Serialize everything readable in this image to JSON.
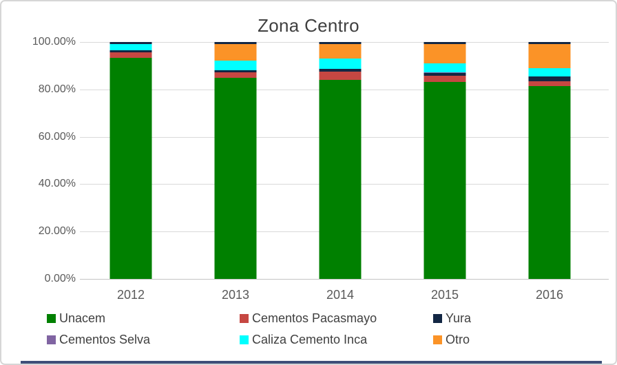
{
  "chart_data": {
    "type": "bar",
    "variant": "100-percent-stacked-column",
    "title": "Zona Centro",
    "categories": [
      "2012",
      "2013",
      "2014",
      "2015",
      "2016"
    ],
    "y_tick_labels": [
      "100.00%",
      "80.00%",
      "60.00%",
      "40.00%",
      "20.00%",
      "0.00%"
    ],
    "ylim": [
      0,
      100
    ],
    "grid": true,
    "legend_position": "bottom",
    "series": [
      {
        "name": "Unacem",
        "color": "#008000",
        "values": [
          93.3,
          85.0,
          84.0,
          83.1,
          81.3
        ]
      },
      {
        "name": "Cementos Pacasmayo",
        "color": "#C64742",
        "values": [
          2.3,
          2.1,
          3.5,
          2.7,
          2.1
        ]
      },
      {
        "name": "Yura",
        "color": "#132744",
        "values": [
          0.8,
          1.0,
          1.2,
          1.2,
          2.0
        ]
      },
      {
        "name": "Cementos Selva",
        "color": "#8064A2",
        "values": [
          0.1,
          0.1,
          0.1,
          0.1,
          0.1
        ]
      },
      {
        "name": "Caliza Cemento Inca",
        "color": "#00FFFF",
        "values": [
          2.6,
          3.9,
          4.2,
          4.0,
          3.6
        ]
      },
      {
        "name": "Otro",
        "color": "#FB9327",
        "values": [
          0.0,
          7.0,
          6.1,
          8.1,
          10.0
        ]
      },
      {
        "name": "top-cap",
        "color": "#132744",
        "values": [
          0.9,
          0.9,
          0.9,
          0.8,
          0.9
        ],
        "in_legend": false
      }
    ]
  },
  "frame": {
    "background": "#FFFFFF",
    "border_color": "#D6D6D6",
    "gridline_color": "#D9D9D9",
    "axis_line_color": "#C4C4C4",
    "text_color": "#595959",
    "title_color": "#404040"
  },
  "footer_strip": {
    "color": "#3D4E78"
  }
}
